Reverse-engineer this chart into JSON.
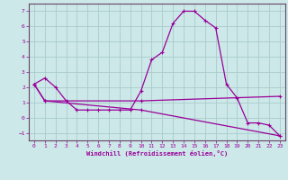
{
  "xlabel": "Windchill (Refroidissement éolien,°C)",
  "bg_color": "#cce8e8",
  "grid_color": "#aacccc",
  "line_color": "#990099",
  "spine_color": "#664466",
  "xlim": [
    -0.5,
    23.5
  ],
  "ylim": [
    -1.5,
    7.5
  ],
  "xticks": [
    0,
    1,
    2,
    3,
    4,
    5,
    6,
    7,
    8,
    9,
    10,
    11,
    12,
    13,
    14,
    15,
    16,
    17,
    18,
    19,
    20,
    21,
    22,
    23
  ],
  "yticks": [
    -1,
    0,
    1,
    2,
    3,
    4,
    5,
    6,
    7
  ],
  "line1_x": [
    0,
    1,
    2,
    3,
    4,
    5,
    6,
    7,
    8,
    9,
    10,
    11,
    12,
    13,
    14,
    15,
    16,
    17,
    18,
    19,
    20,
    21,
    22,
    23
  ],
  "line1_y": [
    2.2,
    2.6,
    2.0,
    1.1,
    0.5,
    0.5,
    0.5,
    0.5,
    0.5,
    0.5,
    1.75,
    3.8,
    4.3,
    6.2,
    7.0,
    7.0,
    6.4,
    5.9,
    2.2,
    1.3,
    -0.35,
    -0.35,
    -0.5,
    -1.2
  ],
  "line2_x": [
    0,
    1,
    10,
    23
  ],
  "line2_y": [
    2.2,
    1.1,
    1.1,
    1.4
  ],
  "line3_x": [
    0,
    1,
    10,
    23
  ],
  "line3_y": [
    2.2,
    1.1,
    0.5,
    -1.2
  ]
}
